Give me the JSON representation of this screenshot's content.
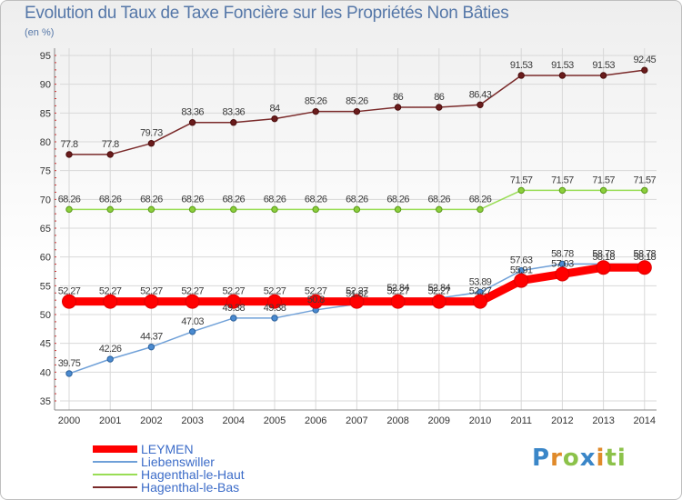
{
  "chart_data": {
    "type": "line",
    "title": "Evolution du Taux de Taxe Foncière sur les Propriétés Non Bâties",
    "unit_label": "(en %)",
    "xlabel": "",
    "ylabel": "(en %)",
    "x": [
      "2000",
      "2001",
      "2002",
      "2003",
      "2004",
      "2005",
      "2006",
      "2007",
      "2008",
      "2009",
      "2010",
      "2011",
      "2012",
      "2013",
      "2014"
    ],
    "ylim": [
      35,
      95
    ],
    "yticks": [
      35,
      40,
      45,
      50,
      55,
      60,
      65,
      70,
      75,
      80,
      85,
      90,
      95
    ],
    "grid": true,
    "series": [
      {
        "name": "LEYMEN",
        "color": "#ff0000",
        "values": [
          52.27,
          52.27,
          52.27,
          52.27,
          52.27,
          52.27,
          52.27,
          52.27,
          52.27,
          52.27,
          52.27,
          55.91,
          57.03,
          58.18,
          58.18
        ],
        "labels": [
          "52.27",
          "52.27",
          "52.27",
          "52.27",
          "52.27",
          "52.27",
          "52.27",
          "52.27",
          "52.27",
          "52.27",
          "52.27",
          "55.91",
          "57.03",
          "58.18",
          "58.18"
        ]
      },
      {
        "name": "Liebenswiller",
        "color": "#6fa0d8",
        "values": [
          39.75,
          42.26,
          44.37,
          47.03,
          49.38,
          49.38,
          50.8,
          51.82,
          52.84,
          52.84,
          53.89,
          57.63,
          58.78,
          58.78,
          58.78
        ],
        "labels": [
          "39.75",
          "42.26",
          "44.37",
          "47.03",
          "49.38",
          "49.38",
          "50.8",
          "51.82",
          "52.84",
          "52.84",
          "53.89",
          "57.63",
          "58.78",
          "58.78",
          "58.78"
        ]
      },
      {
        "name": "Hagenthal-le-Haut",
        "color": "#99dd55",
        "values": [
          68.26,
          68.26,
          68.26,
          68.26,
          68.26,
          68.26,
          68.26,
          68.26,
          68.26,
          68.26,
          68.26,
          71.57,
          71.57,
          71.57,
          71.57
        ],
        "labels": [
          "68.26",
          "68.26",
          "68.26",
          "68.26",
          "68.26",
          "68.26",
          "68.26",
          "68.26",
          "68.26",
          "68.26",
          "68.26",
          "71.57",
          "71.57",
          "71.57",
          "71.57"
        ]
      },
      {
        "name": "Hagenthal-le-Bas",
        "color": "#7a2a2a",
        "values": [
          77.8,
          77.8,
          79.73,
          83.36,
          83.36,
          84,
          85.26,
          85.26,
          86,
          86,
          86.43,
          91.53,
          91.53,
          91.53,
          92.45
        ],
        "labels": [
          "77.8",
          "77.8",
          "79.73",
          "83.36",
          "83.36",
          "84",
          "85.26",
          "85.26",
          "86",
          "86",
          "86.43",
          "91.53",
          "91.53",
          "91.53",
          "92.45"
        ]
      }
    ],
    "legend": [
      "LEYMEN",
      "Liebenswiller",
      "Hagenthal-le-Haut",
      "Hagenthal-le-Bas"
    ],
    "legend_position": "bottom-left"
  },
  "logo": {
    "letters": [
      "P",
      "r",
      "o",
      "x",
      "i",
      "ti"
    ]
  }
}
